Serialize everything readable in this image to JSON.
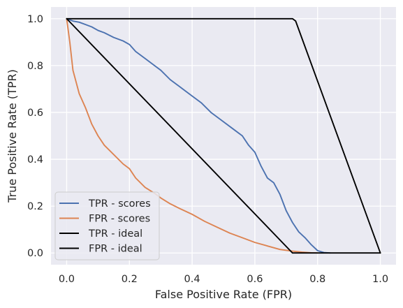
{
  "chart_data": {
    "type": "line",
    "title": "",
    "xlabel": "False Positive Rate (FPR)",
    "ylabel": "True Positive Rate (TPR)",
    "xlim": [
      -0.05,
      1.05
    ],
    "ylim": [
      -0.05,
      1.05
    ],
    "xticks": [
      "0.0",
      "0.2",
      "0.4",
      "0.6",
      "0.8",
      "1.0"
    ],
    "yticks": [
      "0.0",
      "0.2",
      "0.4",
      "0.6",
      "0.8",
      "1.0"
    ],
    "grid": true,
    "legend_position": "lower-left",
    "background_color": "#eaeaf2",
    "grid_color": "#ffffff",
    "series": [
      {
        "name": "TPR - scores",
        "color": "#4c72b0",
        "x": [
          0.0,
          0.02,
          0.04,
          0.06,
          0.08,
          0.1,
          0.12,
          0.15,
          0.18,
          0.2,
          0.22,
          0.25,
          0.28,
          0.3,
          0.33,
          0.36,
          0.4,
          0.43,
          0.46,
          0.5,
          0.53,
          0.56,
          0.58,
          0.6,
          0.62,
          0.64,
          0.66,
          0.68,
          0.7,
          0.72,
          0.74,
          0.76,
          0.78,
          0.8,
          0.82,
          0.84
        ],
        "y": [
          1.0,
          0.99,
          0.985,
          0.975,
          0.965,
          0.95,
          0.94,
          0.92,
          0.905,
          0.89,
          0.86,
          0.83,
          0.8,
          0.78,
          0.74,
          0.71,
          0.67,
          0.64,
          0.6,
          0.56,
          0.53,
          0.5,
          0.46,
          0.43,
          0.37,
          0.32,
          0.3,
          0.25,
          0.18,
          0.13,
          0.09,
          0.065,
          0.035,
          0.01,
          0.002,
          0.0
        ]
      },
      {
        "name": "FPR - scores",
        "color": "#dd8452",
        "x": [
          0.0,
          0.01,
          0.02,
          0.04,
          0.06,
          0.08,
          0.1,
          0.12,
          0.15,
          0.18,
          0.2,
          0.22,
          0.25,
          0.28,
          0.3,
          0.33,
          0.36,
          0.4,
          0.44,
          0.48,
          0.52,
          0.56,
          0.6,
          0.64,
          0.68,
          0.72,
          0.75,
          0.78,
          0.8
        ],
        "y": [
          1.0,
          0.9,
          0.78,
          0.68,
          0.62,
          0.55,
          0.5,
          0.46,
          0.42,
          0.38,
          0.36,
          0.32,
          0.28,
          0.255,
          0.235,
          0.21,
          0.19,
          0.165,
          0.135,
          0.11,
          0.085,
          0.065,
          0.045,
          0.03,
          0.015,
          0.008,
          0.004,
          0.001,
          0.0
        ]
      },
      {
        "name": "TPR - ideal",
        "color": "#000000",
        "x": [
          0.0,
          0.72,
          0.73,
          1.0
        ],
        "y": [
          1.0,
          1.0,
          0.99,
          0.0
        ]
      },
      {
        "name": "FPR - ideal",
        "color": "#000000",
        "x": [
          0.0,
          0.72,
          1.0
        ],
        "y": [
          1.0,
          0.0,
          0.0
        ]
      }
    ]
  }
}
